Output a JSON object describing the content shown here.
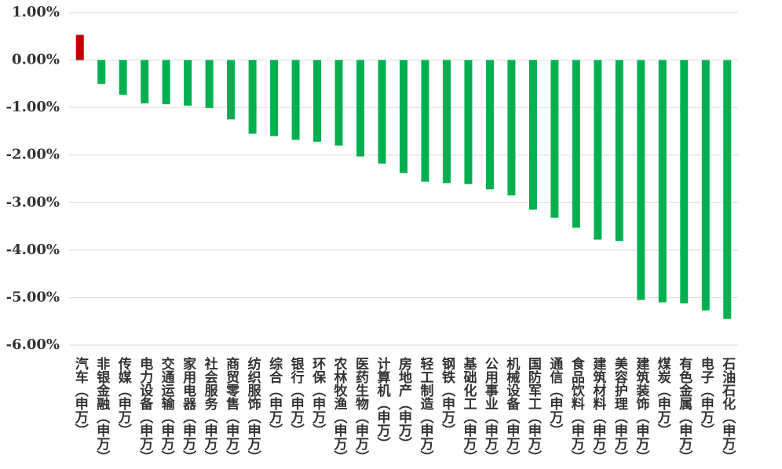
{
  "chart_data": {
    "type": "bar",
    "categories": [
      "汽车（申万）",
      "非银金融（申万）",
      "传媒（申万）",
      "电力设备（申万）",
      "交通运输（申万）",
      "家用电器（申万）",
      "社会服务（申万）",
      "商贸零售（申万）",
      "纺织服饰（申万）",
      "综合（申万）",
      "银行（申万）",
      "环保（申万）",
      "农林牧渔（申万）",
      "医药生物（申万）",
      "计算机（申万）",
      "房地产（申万）",
      "轻工制造（申万）",
      "钢铁（申万）",
      "基础化工（申万）",
      "公用事业（申万）",
      "机械设备（申万）",
      "国防军工（申万）",
      "通信（申万）",
      "食品饮料（申万）",
      "建筑材料（申万）",
      "美容护理（申万）",
      "建筑装饰（申万）",
      "煤炭（申万）",
      "有色金属（申万）",
      "电子（申万）",
      "石油石化（申万）"
    ],
    "values": [
      0.53,
      -0.5,
      -0.73,
      -0.91,
      -0.93,
      -0.96,
      -1.01,
      -1.25,
      -1.55,
      -1.6,
      -1.68,
      -1.72,
      -1.8,
      -2.03,
      -2.18,
      -2.38,
      -2.56,
      -2.59,
      -2.61,
      -2.72,
      -2.85,
      -3.15,
      -3.32,
      -3.53,
      -3.78,
      -3.81,
      -5.05,
      -5.1,
      -5.12,
      -5.27,
      -5.45
    ],
    "colors": {
      "positive": "#c00000",
      "negative": "#00b050"
    },
    "ylim": [
      -6,
      1
    ],
    "yticks": [
      {
        "value": 1,
        "label": "1.00%"
      },
      {
        "value": 0,
        "label": "0.00%"
      },
      {
        "value": -1,
        "label": "-1.00%"
      },
      {
        "value": -2,
        "label": "-2.00%"
      },
      {
        "value": -3,
        "label": "-3.00%"
      },
      {
        "value": -4,
        "label": "-4.00%"
      },
      {
        "value": -5,
        "label": "-5.00%"
      },
      {
        "value": -6,
        "label": "-6.00%"
      }
    ],
    "grid": true
  }
}
